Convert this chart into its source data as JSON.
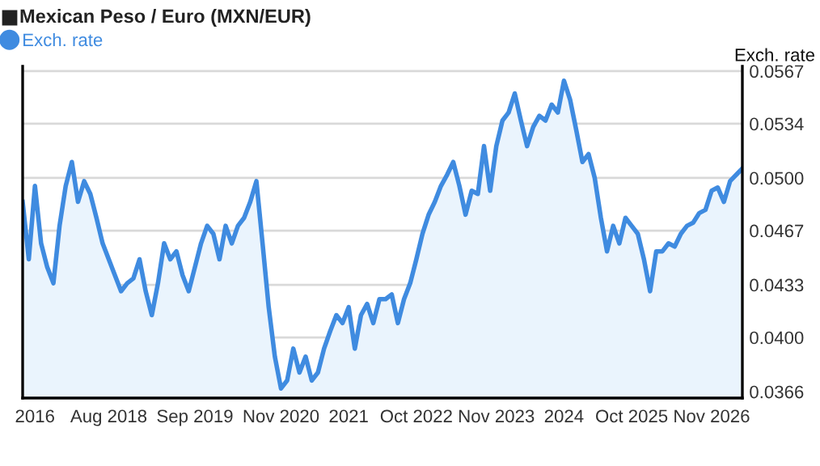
{
  "chart_data": {
    "type": "area",
    "title": "Mexican Peso / Euro (MXN/EUR)",
    "ylabel": "Exch. rate",
    "categories": [
      null,
      null,
      "2016",
      null,
      null,
      null,
      null,
      null,
      null,
      null,
      null,
      null,
      null,
      null,
      "Aug 2018",
      null,
      null,
      null,
      null,
      null,
      null,
      null,
      null,
      null,
      null,
      null,
      null,
      null,
      "Sep 2019",
      null,
      null,
      null,
      null,
      null,
      null,
      null,
      null,
      null,
      null,
      null,
      null,
      null,
      "Nov 2020",
      null,
      null,
      null,
      null,
      null,
      null,
      null,
      null,
      null,
      null,
      "2021",
      null,
      null,
      null,
      null,
      null,
      null,
      null,
      null,
      null,
      null,
      "Oct 2022",
      null,
      null,
      null,
      null,
      null,
      null,
      null,
      null,
      null,
      null,
      null,
      null,
      "Nov 2023",
      null,
      null,
      null,
      null,
      null,
      null,
      null,
      null,
      null,
      null,
      "2024",
      null,
      null,
      null,
      null,
      null,
      null,
      null,
      null,
      null,
      null,
      "Oct 2025",
      null,
      null,
      null,
      null,
      null,
      null,
      null,
      null,
      null,
      null,
      null,
      null,
      "Nov 2026",
      null,
      null,
      null,
      null,
      null
    ],
    "series": [
      {
        "name": "Exch. rate",
        "color": "#3f8be0",
        "values": [
          0.0485,
          0.0449,
          0.0495,
          0.0459,
          0.0444,
          0.0434,
          0.047,
          0.0495,
          0.051,
          0.0485,
          0.0498,
          0.049,
          0.0475,
          0.0459,
          0.0449,
          0.0439,
          0.0429,
          0.0434,
          0.0437,
          0.0449,
          0.0429,
          0.0414,
          0.0434,
          0.0459,
          0.0449,
          0.0454,
          0.0439,
          0.0429,
          0.0444,
          0.0459,
          0.047,
          0.0465,
          0.0449,
          0.047,
          0.0459,
          0.047,
          0.0475,
          0.0485,
          0.0498,
          0.0459,
          0.0419,
          0.0388,
          0.0368,
          0.0373,
          0.0393,
          0.0378,
          0.0388,
          0.0373,
          0.0378,
          0.0393,
          0.0404,
          0.0414,
          0.0409,
          0.0419,
          0.0393,
          0.0414,
          0.0421,
          0.0409,
          0.0424,
          0.0424,
          0.0427,
          0.0409,
          0.0424,
          0.0434,
          0.0449,
          0.0465,
          0.0477,
          0.0485,
          0.0495,
          0.0502,
          0.051,
          0.0495,
          0.0477,
          0.0492,
          0.049,
          0.052,
          0.0492,
          0.052,
          0.0536,
          0.0541,
          0.0553,
          0.0536,
          0.052,
          0.0532,
          0.0539,
          0.0536,
          0.0546,
          0.0541,
          0.0561,
          0.0549,
          0.053,
          0.051,
          0.0515,
          0.05,
          0.0475,
          0.0454,
          0.047,
          0.0459,
          0.0475,
          0.047,
          0.0465,
          0.0449,
          0.0429,
          0.0454,
          0.0454,
          0.0459,
          0.0457,
          0.0465,
          0.047,
          0.0472,
          0.0478,
          0.048,
          0.0492,
          0.0494,
          0.0485,
          0.0498,
          0.0502,
          0.0506
        ]
      }
    ],
    "ylim": [
      0.0362,
      0.057
    ],
    "yticks": [
      {
        "value": 0.0366,
        "label": "0.0366"
      },
      {
        "value": 0.04,
        "label": "0.0400"
      },
      {
        "value": 0.0433,
        "label": "0.0433"
      },
      {
        "value": 0.0467,
        "label": "0.0467"
      },
      {
        "value": 0.05,
        "label": "0.0500"
      },
      {
        "value": 0.0534,
        "label": "0.0534"
      },
      {
        "value": 0.0567,
        "label": "0.0567"
      }
    ],
    "grid": "y",
    "legend": "top left",
    "marker": "none",
    "line_style": "solid"
  }
}
